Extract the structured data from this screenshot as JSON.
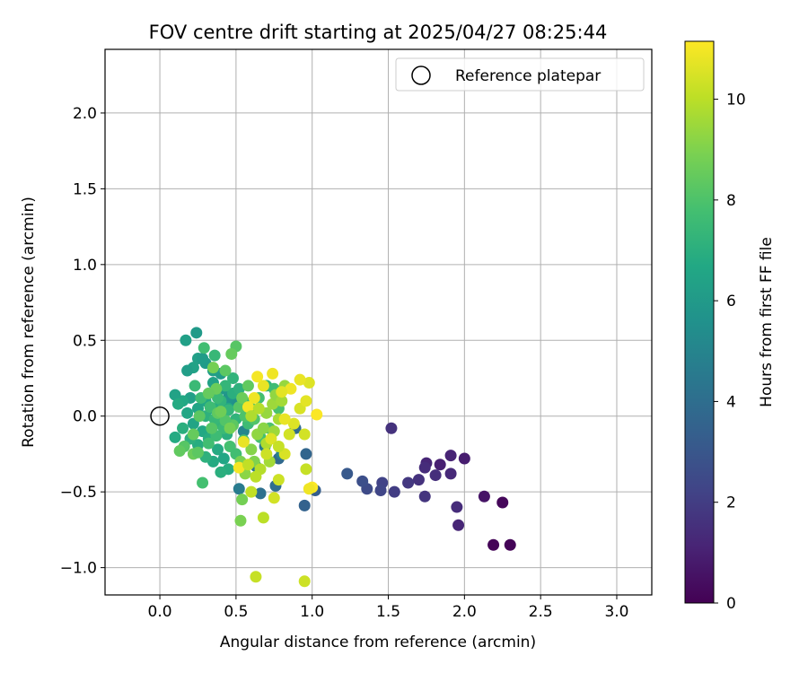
{
  "chart_data": {
    "type": "scatter",
    "title": "FOV centre drift starting at 2025/04/27 08:25:44",
    "xlabel": "Angular distance from reference (arcmin)",
    "ylabel": "Rotation from reference (arcmin)",
    "xlim": [
      -0.36,
      3.23
    ],
    "ylim": [
      -1.18,
      2.42
    ],
    "xticks": [
      0.0,
      0.5,
      1.0,
      1.5,
      2.0,
      2.5,
      3.0
    ],
    "xtick_labels": [
      "0.0",
      "0.5",
      "1.0",
      "1.5",
      "2.0",
      "2.5",
      "3.0"
    ],
    "yticks": [
      -1.0,
      -0.5,
      0.0,
      0.5,
      1.0,
      1.5,
      2.0
    ],
    "ytick_labels": [
      "−1.0",
      "−0.5",
      "0.0",
      "0.5",
      "1.0",
      "1.5",
      "2.0"
    ],
    "grid": true,
    "legend": {
      "position": "top-right",
      "label": "Reference platepar"
    },
    "reference_point": {
      "x": 0.0,
      "y": 0.0
    },
    "colorbar": {
      "label": "Hours from first FF file",
      "range": [
        0,
        11.15
      ],
      "ticks": [
        0,
        2,
        4,
        6,
        8,
        10
      ],
      "tick_labels": [
        "0",
        "2",
        "4",
        "6",
        "8",
        "10"
      ],
      "colormap": "viridis"
    },
    "series": [
      {
        "points": [
          [
            2.25,
            -0.57,
            0.2
          ],
          [
            2.19,
            -0.85,
            0.1
          ],
          [
            2.3,
            -0.85,
            0.1
          ],
          [
            2.13,
            -0.53,
            0.6
          ],
          [
            1.96,
            -0.72,
            1.2
          ],
          [
            1.95,
            -0.6,
            1.4
          ],
          [
            2.0,
            -0.28,
            0.9
          ],
          [
            1.91,
            -0.26,
            1.1
          ],
          [
            1.84,
            -0.32,
            1.0
          ],
          [
            1.91,
            -0.38,
            1.3
          ],
          [
            1.81,
            -0.39,
            1.5
          ],
          [
            1.75,
            -0.31,
            1.2
          ],
          [
            1.74,
            -0.34,
            1.4
          ],
          [
            1.74,
            -0.53,
            1.7
          ],
          [
            1.7,
            -0.42,
            1.6
          ],
          [
            1.63,
            -0.44,
            1.8
          ],
          [
            1.52,
            -0.08,
            1.6
          ],
          [
            1.54,
            -0.5,
            2.0
          ],
          [
            1.46,
            -0.44,
            2.2
          ],
          [
            1.45,
            -0.49,
            2.3
          ],
          [
            1.36,
            -0.48,
            2.5
          ],
          [
            1.33,
            -0.43,
            2.7
          ],
          [
            1.23,
            -0.38,
            3.1
          ],
          [
            1.02,
            -0.49,
            3.3
          ],
          [
            0.95,
            -0.59,
            3.5
          ],
          [
            0.96,
            -0.25,
            3.6
          ],
          [
            0.89,
            -0.08,
            3.9
          ],
          [
            0.78,
            -0.28,
            3.8
          ],
          [
            0.76,
            -0.46,
            4.0
          ],
          [
            0.66,
            -0.51,
            4.1
          ],
          [
            0.52,
            -0.48,
            4.6
          ],
          [
            0.63,
            -0.33,
            4.4
          ],
          [
            0.69,
            -0.2,
            4.7
          ],
          [
            0.8,
            -0.25,
            4.8
          ],
          [
            0.55,
            -0.1,
            5.1
          ],
          [
            0.58,
            -0.02,
            5.3
          ],
          [
            0.5,
            0.08,
            5.5
          ],
          [
            0.45,
            0.12,
            5.7
          ],
          [
            0.42,
            0.18,
            5.9
          ],
          [
            0.4,
            0.28,
            6.1
          ],
          [
            0.35,
            0.3,
            6.2
          ],
          [
            0.3,
            0.35,
            6.0
          ],
          [
            0.25,
            0.38,
            6.3
          ],
          [
            0.22,
            0.32,
            6.4
          ],
          [
            0.18,
            0.3,
            6.2
          ],
          [
            0.24,
            0.55,
            6.0
          ],
          [
            0.17,
            0.5,
            6.3
          ],
          [
            0.28,
            0.38,
            6.1
          ],
          [
            0.35,
            0.22,
            6.4
          ],
          [
            0.3,
            0.1,
            6.6
          ],
          [
            0.25,
            0.05,
            6.5
          ],
          [
            0.2,
            0.12,
            6.3
          ],
          [
            0.15,
            0.1,
            6.7
          ],
          [
            0.1,
            0.14,
            6.4
          ],
          [
            0.12,
            0.08,
            6.8
          ],
          [
            0.18,
            0.02,
            6.6
          ],
          [
            0.22,
            -0.05,
            6.5
          ],
          [
            0.28,
            -0.1,
            6.7
          ],
          [
            0.32,
            -0.15,
            6.9
          ],
          [
            0.38,
            -0.22,
            6.8
          ],
          [
            0.42,
            -0.28,
            6.6
          ],
          [
            0.45,
            -0.35,
            6.9
          ],
          [
            0.4,
            -0.37,
            7.0
          ],
          [
            0.35,
            -0.3,
            6.8
          ],
          [
            0.3,
            -0.27,
            7.1
          ],
          [
            0.25,
            -0.19,
            6.9
          ],
          [
            0.2,
            -0.15,
            7.1
          ],
          [
            0.15,
            -0.08,
            7.0
          ],
          [
            0.1,
            -0.14,
            6.8
          ],
          [
            0.45,
            0.05,
            6.7
          ],
          [
            0.48,
            0.15,
            7.0
          ],
          [
            0.4,
            0.1,
            7.2
          ],
          [
            0.35,
            0.05,
            6.9
          ],
          [
            0.3,
            0.0,
            7.1
          ],
          [
            0.38,
            -0.05,
            7.3
          ],
          [
            0.44,
            -0.12,
            7.0
          ],
          [
            0.5,
            -0.02,
            7.2
          ],
          [
            0.55,
            0.1,
            7.4
          ],
          [
            0.52,
            0.18,
            7.1
          ],
          [
            0.48,
            0.25,
            7.2
          ],
          [
            0.36,
            0.4,
            7.4
          ],
          [
            0.45,
            0.04,
            7.3
          ],
          [
            0.42,
            -0.08,
            7.5
          ],
          [
            0.36,
            -0.02,
            7.4
          ],
          [
            0.33,
            0.06,
            7.6
          ],
          [
            0.38,
            0.12,
            7.5
          ],
          [
            0.43,
            0.2,
            7.3
          ],
          [
            0.27,
            0.12,
            7.6
          ],
          [
            0.23,
            0.2,
            7.5
          ],
          [
            0.32,
            -0.18,
            7.7
          ],
          [
            0.37,
            -0.13,
            7.6
          ],
          [
            0.46,
            -0.2,
            7.8
          ],
          [
            0.5,
            -0.25,
            7.7
          ],
          [
            0.55,
            -0.16,
            7.9
          ],
          [
            0.58,
            -0.05,
            7.6
          ],
          [
            0.6,
            0.05,
            7.7
          ],
          [
            0.65,
            0.12,
            7.8
          ],
          [
            0.7,
            0.2,
            7.3
          ],
          [
            0.75,
            0.18,
            7.6
          ],
          [
            0.78,
            0.05,
            7.9
          ],
          [
            0.72,
            -0.08,
            8.0
          ],
          [
            0.66,
            -0.14,
            7.8
          ],
          [
            0.62,
            -0.02,
            8.1
          ],
          [
            0.56,
            0.0,
            8.0
          ],
          [
            0.52,
            0.06,
            8.2
          ],
          [
            0.48,
            -0.06,
            8.3
          ],
          [
            0.43,
            -0.03,
            8.1
          ],
          [
            0.38,
            0.02,
            8.4
          ],
          [
            0.34,
            -0.08,
            8.2
          ],
          [
            0.26,
            0.0,
            8.3
          ],
          [
            0.22,
            -0.12,
            8.5
          ],
          [
            0.16,
            -0.2,
            8.2
          ],
          [
            0.13,
            -0.23,
            8.4
          ],
          [
            0.22,
            -0.25,
            8.6
          ],
          [
            0.25,
            -0.24,
            8.3
          ],
          [
            0.28,
            -0.44,
            7.8
          ],
          [
            0.5,
            0.46,
            8.2
          ],
          [
            0.47,
            0.41,
            8.5
          ],
          [
            0.43,
            0.3,
            8.3
          ],
          [
            0.37,
            0.18,
            8.6
          ],
          [
            0.32,
            0.15,
            8.5
          ],
          [
            0.4,
            0.03,
            8.7
          ],
          [
            0.46,
            -0.08,
            8.8
          ],
          [
            0.54,
            0.12,
            8.6
          ],
          [
            0.58,
            0.2,
            8.4
          ],
          [
            0.35,
            0.32,
            8.8
          ],
          [
            0.29,
            0.45,
            7.7
          ],
          [
            0.53,
            -0.3,
            8.9
          ],
          [
            0.54,
            -0.55,
            8.8
          ],
          [
            0.53,
            -0.69,
            8.9
          ],
          [
            0.62,
            -0.3,
            9.0
          ],
          [
            0.56,
            -0.38,
            9.2
          ],
          [
            0.6,
            -0.22,
            9.1
          ],
          [
            0.64,
            -0.12,
            9.3
          ],
          [
            0.68,
            -0.08,
            9.2
          ],
          [
            0.7,
            0.02,
            9.4
          ],
          [
            0.74,
            0.08,
            9.5
          ],
          [
            0.76,
            0.14,
            9.3
          ],
          [
            0.8,
            0.1,
            9.6
          ],
          [
            0.82,
            0.2,
            9.4
          ],
          [
            0.78,
            -0.02,
            9.7
          ],
          [
            0.75,
            -0.1,
            9.5
          ],
          [
            0.7,
            -0.18,
            9.8
          ],
          [
            0.72,
            -0.3,
            9.6
          ],
          [
            0.66,
            -0.35,
            9.9
          ],
          [
            0.63,
            -0.4,
            10.0
          ],
          [
            0.6,
            -0.5,
            10.1
          ],
          [
            0.68,
            -0.67,
            10.0
          ],
          [
            0.63,
            -1.06,
            10.2
          ],
          [
            0.95,
            -1.09,
            10.3
          ],
          [
            0.75,
            -0.54,
            10.4
          ],
          [
            0.78,
            -0.42,
            10.3
          ],
          [
            0.82,
            -0.25,
            10.5
          ],
          [
            0.85,
            -0.12,
            10.4
          ],
          [
            0.88,
            -0.05,
            10.6
          ],
          [
            0.92,
            0.05,
            10.5
          ],
          [
            0.96,
            0.1,
            10.7
          ],
          [
            0.98,
            0.22,
            10.6
          ],
          [
            0.92,
            0.24,
            10.8
          ],
          [
            0.86,
            0.18,
            10.9
          ],
          [
            0.8,
            0.16,
            10.7
          ],
          [
            0.74,
            0.28,
            10.9
          ],
          [
            0.68,
            0.2,
            10.8
          ],
          [
            0.64,
            0.26,
            11.0
          ],
          [
            0.62,
            0.12,
            10.9
          ],
          [
            0.58,
            0.06,
            11.0
          ],
          [
            0.55,
            -0.17,
            10.8
          ],
          [
            0.52,
            -0.34,
            11.0
          ],
          [
            0.96,
            -0.35,
            10.2
          ],
          [
            0.95,
            -0.12,
            10.4
          ],
          [
            0.82,
            -0.02,
            10.8
          ],
          [
            1.03,
            0.01,
            11.1
          ],
          [
            1.0,
            -0.47,
            11.1
          ],
          [
            0.98,
            -0.48,
            10.9
          ],
          [
            0.73,
            -0.15,
            10.6
          ],
          [
            0.7,
            -0.25,
            10.3
          ],
          [
            0.58,
            -0.32,
            10.1
          ],
          [
            0.6,
            0.0,
            9.8
          ],
          [
            0.65,
            0.05,
            9.9
          ],
          [
            0.78,
            -0.2,
            10.2
          ]
        ]
      }
    ]
  }
}
